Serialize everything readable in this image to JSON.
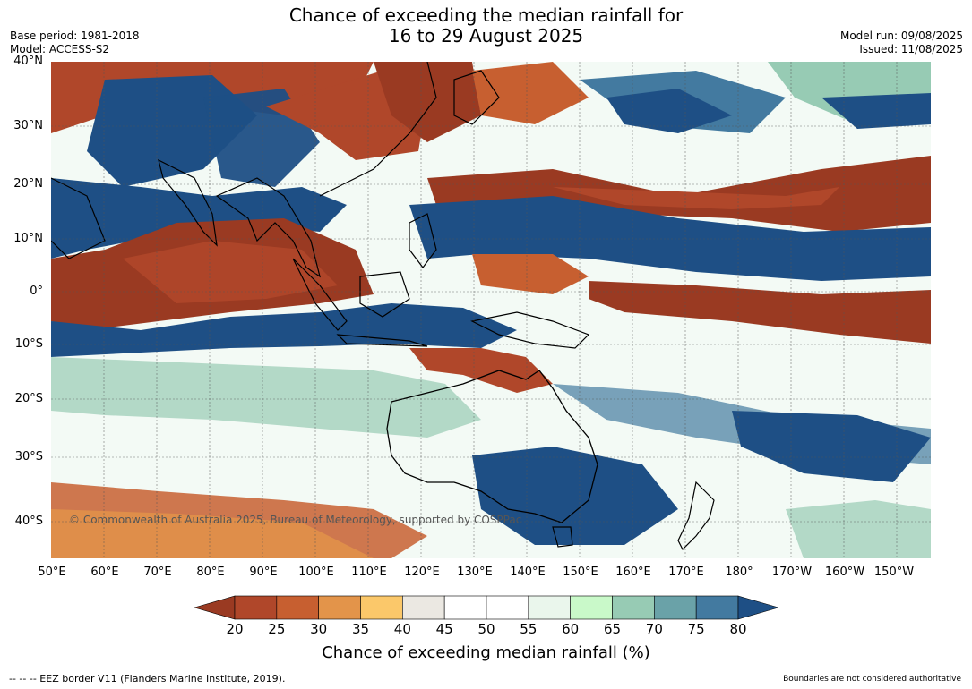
{
  "header": {
    "title_line1": "Chance of exceeding the median rainfall for",
    "title_line2": "16 to 29 August 2025",
    "base_period": "Base period: 1981-2018",
    "model": "Model: ACCESS-S2",
    "model_run": "Model run: 09/08/2025",
    "issued": "Issued: 11/08/2025"
  },
  "map": {
    "latitude_labels": [
      "40°N",
      "30°N",
      "20°N",
      "10°N",
      "0°",
      "10°S",
      "20°S",
      "30°S",
      "40°S"
    ],
    "longitude_labels": [
      "50°E",
      "60°E",
      "70°E",
      "80°E",
      "90°E",
      "100°E",
      "110°E",
      "120°E",
      "130°E",
      "140°E",
      "150°E",
      "160°E",
      "170°E",
      "180°",
      "170°W",
      "160°W",
      "150°W"
    ],
    "copyright": "© Commonwealth of Australia 2025, Bureau of Meteorology, supported by COSPPac"
  },
  "colorbar": {
    "label": "Chance of exceeding median rainfall (%)",
    "ticks": [
      "20",
      "25",
      "30",
      "35",
      "40",
      "45",
      "50",
      "55",
      "60",
      "65",
      "70",
      "75",
      "80"
    ],
    "colors": [
      "#9a3a22",
      "#b0472a",
      "#c75f30",
      "#e3944a",
      "#fbc86a",
      "#ebe8e2",
      "#ffffff",
      "#ffffff",
      "#eaf6ec",
      "#c9f9c9",
      "#97cbb4",
      "#6aa2a8",
      "#437aa0",
      "#1e4f85"
    ]
  },
  "footer": {
    "eez_note": "--  --  -- EEZ border V11 (Flanders Marine Institute, 2019).",
    "boundaries_note": "Boundaries are not considered authoritative"
  }
}
